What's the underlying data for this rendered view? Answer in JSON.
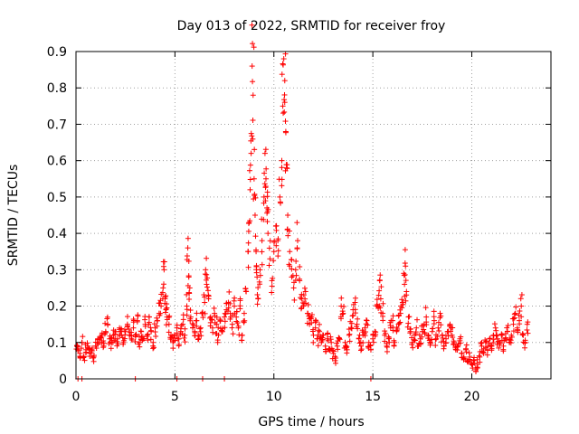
{
  "chart_data": {
    "type": "scatter",
    "title": "Day 013 of 2022, SRMTID for receiver froy",
    "xlabel": "GPS time / hours",
    "ylabel": "SRMTID / TECUs",
    "xlim": [
      0,
      24
    ],
    "ylim": [
      0,
      0.9
    ],
    "xticks": [
      0,
      5,
      10,
      15,
      20
    ],
    "yticks": [
      0,
      0.1,
      0.2,
      0.3,
      0.4,
      0.5,
      0.6,
      0.7,
      0.8,
      0.9
    ],
    "grid": true,
    "marker": "+",
    "color": "#ff0000",
    "series": [
      {
        "name": "SRMTID",
        "points": [
          [
            0.05,
            0.09
          ],
          [
            0.1,
            0.08
          ],
          [
            0.2,
            0.07
          ],
          [
            0.3,
            0.1
          ],
          [
            0.4,
            0.06
          ],
          [
            0.5,
            0.08
          ],
          [
            0.6,
            0.09
          ],
          [
            0.7,
            0.07
          ],
          [
            0.8,
            0.08
          ],
          [
            0.9,
            0.06
          ],
          [
            1.0,
            0.09
          ],
          [
            1.1,
            0.11
          ],
          [
            1.2,
            0.1
          ],
          [
            1.3,
            0.12
          ],
          [
            1.4,
            0.09
          ],
          [
            1.5,
            0.13
          ],
          [
            1.6,
            0.15
          ],
          [
            1.7,
            0.11
          ],
          [
            1.8,
            0.1
          ],
          [
            1.9,
            0.12
          ],
          [
            2.0,
            0.13
          ],
          [
            2.1,
            0.11
          ],
          [
            2.2,
            0.14
          ],
          [
            2.3,
            0.12
          ],
          [
            2.4,
            0.1
          ],
          [
            2.5,
            0.13
          ],
          [
            2.6,
            0.15
          ],
          [
            2.7,
            0.12
          ],
          [
            2.8,
            0.11
          ],
          [
            2.9,
            0.14
          ],
          [
            3.0,
            0.12
          ],
          [
            3.1,
            0.16
          ],
          [
            3.2,
            0.1
          ],
          [
            3.3,
            0.13
          ],
          [
            3.4,
            0.11
          ],
          [
            3.5,
            0.15
          ],
          [
            3.6,
            0.12
          ],
          [
            3.7,
            0.17
          ],
          [
            3.8,
            0.13
          ],
          [
            3.9,
            0.1
          ],
          [
            4.0,
            0.14
          ],
          [
            4.1,
            0.16
          ],
          [
            4.2,
            0.18
          ],
          [
            4.3,
            0.2
          ],
          [
            4.4,
            0.25
          ],
          [
            4.45,
            0.3
          ],
          [
            4.5,
            0.22
          ],
          [
            4.55,
            0.19
          ],
          [
            4.6,
            0.17
          ],
          [
            4.7,
            0.15
          ],
          [
            4.8,
            0.12
          ],
          [
            4.9,
            0.1
          ],
          [
            5.0,
            0.12
          ],
          [
            5.1,
            0.14
          ],
          [
            5.2,
            0.11
          ],
          [
            5.3,
            0.13
          ],
          [
            5.4,
            0.15
          ],
          [
            5.5,
            0.12
          ],
          [
            5.6,
            0.2
          ],
          [
            5.65,
            0.36
          ],
          [
            5.7,
            0.28
          ],
          [
            5.75,
            0.25
          ],
          [
            5.8,
            0.17
          ],
          [
            5.9,
            0.14
          ],
          [
            6.0,
            0.13
          ],
          [
            6.1,
            0.16
          ],
          [
            6.2,
            0.11
          ],
          [
            6.3,
            0.14
          ],
          [
            6.4,
            0.18
          ],
          [
            6.5,
            0.21
          ],
          [
            6.55,
            0.3
          ],
          [
            6.6,
            0.26
          ],
          [
            6.7,
            0.22
          ],
          [
            6.8,
            0.17
          ],
          [
            6.9,
            0.14
          ],
          [
            7.0,
            0.18
          ],
          [
            7.1,
            0.15
          ],
          [
            7.2,
            0.12
          ],
          [
            7.3,
            0.16
          ],
          [
            7.4,
            0.13
          ],
          [
            7.5,
            0.17
          ],
          [
            7.6,
            0.19
          ],
          [
            7.7,
            0.21
          ],
          [
            7.8,
            0.18
          ],
          [
            7.9,
            0.15
          ],
          [
            8.0,
            0.2
          ],
          [
            8.1,
            0.17
          ],
          [
            8.2,
            0.14
          ],
          [
            8.3,
            0.22
          ],
          [
            8.4,
            0.12
          ],
          [
            8.5,
            0.18
          ],
          [
            8.6,
            0.24
          ],
          [
            8.7,
            0.35
          ],
          [
            8.75,
            0.43
          ],
          [
            8.8,
            0.52
          ],
          [
            8.85,
            0.62
          ],
          [
            8.9,
            0.86
          ],
          [
            8.95,
            0.78
          ],
          [
            9.0,
            0.55
          ],
          [
            9.05,
            0.45
          ],
          [
            9.1,
            0.35
          ],
          [
            9.15,
            0.28
          ],
          [
            9.2,
            0.22
          ],
          [
            9.3,
            0.3
          ],
          [
            9.4,
            0.38
          ],
          [
            9.5,
            0.5
          ],
          [
            9.55,
            0.62
          ],
          [
            9.6,
            0.55
          ],
          [
            9.65,
            0.47
          ],
          [
            9.7,
            0.4
          ],
          [
            9.8,
            0.33
          ],
          [
            9.9,
            0.27
          ],
          [
            10.0,
            0.35
          ],
          [
            10.1,
            0.42
          ],
          [
            10.2,
            0.38
          ],
          [
            10.3,
            0.5
          ],
          [
            10.4,
            0.6
          ],
          [
            10.45,
            0.75
          ],
          [
            10.5,
            0.88
          ],
          [
            10.55,
            0.82
          ],
          [
            10.6,
            0.68
          ],
          [
            10.65,
            0.58
          ],
          [
            10.7,
            0.45
          ],
          [
            10.8,
            0.35
          ],
          [
            10.9,
            0.28
          ],
          [
            11.0,
            0.25
          ],
          [
            11.1,
            0.3
          ],
          [
            11.2,
            0.38
          ],
          [
            11.3,
            0.27
          ],
          [
            11.4,
            0.22
          ],
          [
            11.5,
            0.2
          ],
          [
            11.6,
            0.24
          ],
          [
            11.7,
            0.18
          ],
          [
            11.8,
            0.15
          ],
          [
            11.9,
            0.17
          ],
          [
            12.0,
            0.12
          ],
          [
            12.1,
            0.14
          ],
          [
            12.2,
            0.11
          ],
          [
            12.3,
            0.13
          ],
          [
            12.4,
            0.1
          ],
          [
            12.5,
            0.12
          ],
          [
            12.6,
            0.09
          ],
          [
            12.7,
            0.11
          ],
          [
            12.8,
            0.08
          ],
          [
            12.9,
            0.1
          ],
          [
            13.0,
            0.07
          ],
          [
            13.1,
            0.05
          ],
          [
            13.2,
            0.09
          ],
          [
            13.3,
            0.11
          ],
          [
            13.4,
            0.2
          ],
          [
            13.5,
            0.18
          ],
          [
            13.6,
            0.1
          ],
          [
            13.7,
            0.08
          ],
          [
            13.8,
            0.12
          ],
          [
            13.9,
            0.14
          ],
          [
            14.0,
            0.19
          ],
          [
            14.1,
            0.21
          ],
          [
            14.2,
            0.15
          ],
          [
            14.3,
            0.11
          ],
          [
            14.4,
            0.09
          ],
          [
            14.5,
            0.12
          ],
          [
            14.6,
            0.14
          ],
          [
            14.7,
            0.16
          ],
          [
            14.8,
            0.1
          ],
          [
            14.9,
            0.08
          ],
          [
            15.0,
            0.11
          ],
          [
            15.1,
            0.13
          ],
          [
            15.2,
            0.2
          ],
          [
            15.3,
            0.23
          ],
          [
            15.35,
            0.27
          ],
          [
            15.4,
            0.22
          ],
          [
            15.5,
            0.18
          ],
          [
            15.6,
            0.12
          ],
          [
            15.7,
            0.09
          ],
          [
            15.8,
            0.11
          ],
          [
            15.9,
            0.14
          ],
          [
            16.0,
            0.16
          ],
          [
            16.1,
            0.1
          ],
          [
            16.2,
            0.13
          ],
          [
            16.3,
            0.15
          ],
          [
            16.4,
            0.18
          ],
          [
            16.5,
            0.21
          ],
          [
            16.6,
            0.26
          ],
          [
            16.65,
            0.31
          ],
          [
            16.7,
            0.24
          ],
          [
            16.8,
            0.17
          ],
          [
            16.9,
            0.13
          ],
          [
            17.0,
            0.1
          ],
          [
            17.1,
            0.12
          ],
          [
            17.2,
            0.14
          ],
          [
            17.3,
            0.09
          ],
          [
            17.4,
            0.11
          ],
          [
            17.5,
            0.13
          ],
          [
            17.6,
            0.15
          ],
          [
            17.7,
            0.17
          ],
          [
            17.8,
            0.12
          ],
          [
            17.9,
            0.1
          ],
          [
            18.0,
            0.13
          ],
          [
            18.1,
            0.16
          ],
          [
            18.2,
            0.11
          ],
          [
            18.3,
            0.14
          ],
          [
            18.4,
            0.18
          ],
          [
            18.5,
            0.12
          ],
          [
            18.6,
            0.09
          ],
          [
            18.7,
            0.11
          ],
          [
            18.8,
            0.13
          ],
          [
            18.9,
            0.15
          ],
          [
            19.0,
            0.12
          ],
          [
            19.1,
            0.1
          ],
          [
            19.2,
            0.08
          ],
          [
            19.3,
            0.09
          ],
          [
            19.4,
            0.11
          ],
          [
            19.5,
            0.07
          ],
          [
            19.6,
            0.06
          ],
          [
            19.7,
            0.08
          ],
          [
            19.8,
            0.05
          ],
          [
            19.9,
            0.06
          ],
          [
            20.0,
            0.04
          ],
          [
            20.1,
            0.05
          ],
          [
            20.2,
            0.03
          ],
          [
            20.3,
            0.04
          ],
          [
            20.4,
            0.06
          ],
          [
            20.5,
            0.09
          ],
          [
            20.6,
            0.07
          ],
          [
            20.7,
            0.1
          ],
          [
            20.8,
            0.08
          ],
          [
            20.9,
            0.11
          ],
          [
            21.0,
            0.09
          ],
          [
            21.1,
            0.12
          ],
          [
            21.2,
            0.14
          ],
          [
            21.3,
            0.11
          ],
          [
            21.4,
            0.1
          ],
          [
            21.5,
            0.12
          ],
          [
            21.6,
            0.09
          ],
          [
            21.7,
            0.11
          ],
          [
            21.8,
            0.13
          ],
          [
            21.9,
            0.1
          ],
          [
            22.0,
            0.12
          ],
          [
            22.1,
            0.15
          ],
          [
            22.2,
            0.18
          ],
          [
            22.3,
            0.14
          ],
          [
            22.4,
            0.16
          ],
          [
            22.5,
            0.2
          ],
          [
            22.6,
            0.12
          ],
          [
            22.7,
            0.1
          ],
          [
            22.8,
            0.15
          ]
        ]
      }
    ],
    "zero_markers_x": [
      0.1,
      0.3,
      3.0,
      5.1,
      6.4,
      7.5,
      14.9
    ]
  }
}
